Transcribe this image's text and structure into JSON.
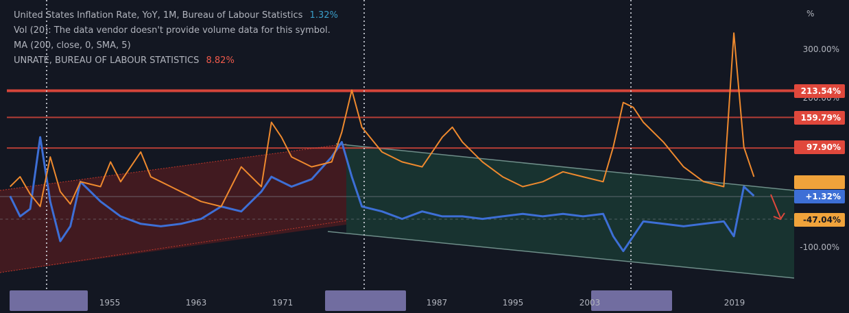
{
  "legend": {
    "row1_label": "United States Inflation Rate, YoY, 1M, Bureau of Labour Statistics",
    "row1_value": "1.32%",
    "row2_label": "Vol (20): The data vendor doesn't provide volume data for this symbol.",
    "row3_label": "MA (200, close, 0, SMA, 5)",
    "row4_label": "UNRATE, BUREAU OF LABOUR STATISTICS",
    "row4_value": "8.82%"
  },
  "colors": {
    "background": "#131722",
    "inflation_line": "#3d6fd6",
    "unrate_line": "#ef8a2e",
    "resistance": "#e0483c",
    "channel_up_fill": "#7a1f1f",
    "channel_down_fill": "#1d4a3c",
    "channel_down_line": "#6f8f8a",
    "axis_text": "#b2b5be"
  },
  "chart_data": {
    "type": "line",
    "title": "United States Inflation Rate, YoY, 1M, Bureau of Labour Statistics",
    "x_ticks": [
      "1955",
      "1963",
      "1971",
      "1987",
      "1995",
      "2003",
      "2019"
    ],
    "y_unit": "%",
    "y_ticks": [
      "300.00%",
      "200.00%",
      "100.00%",
      "-100.00%"
    ],
    "price_labels": [
      {
        "text": "213.54%",
        "color": "#e0483c"
      },
      {
        "text": "159.79%",
        "color": "#e0483c"
      },
      {
        "text": "97.90%",
        "color": "#e0483c"
      },
      {
        "text": "+1.32%",
        "color": "#3d6fd6"
      },
      {
        "text": "-47.04%",
        "color": "#f0a33b"
      }
    ],
    "horizontal_levels": [
      213.54,
      159.79,
      97.9
    ],
    "series": [
      {
        "name": "United States Inflation Rate, YoY, 1M, Bureau of Labour Statistics",
        "x": [
          1948,
          1949,
          1950,
          1951,
          1952,
          1953,
          1954,
          1955,
          1957,
          1959,
          1961,
          1963,
          1965,
          1967,
          1969,
          1971,
          1973,
          1974,
          1975,
          1976,
          1978,
          1980,
          1981,
          1982,
          1983,
          1985,
          1987,
          1989,
          1991,
          1993,
          1995,
          1997,
          1999,
          2001,
          2003,
          2005,
          2007,
          2008,
          2009,
          2011,
          2013,
          2015,
          2017,
          2019,
          2020,
          2021,
          2022
        ],
        "y": [
          1,
          -40,
          -25,
          120,
          -10,
          -90,
          -60,
          30,
          -10,
          -40,
          -55,
          -60,
          -55,
          -45,
          -20,
          -30,
          10,
          40,
          30,
          20,
          35,
          80,
          110,
          40,
          -20,
          -30,
          -45,
          -30,
          -40,
          -40,
          -45,
          -40,
          -35,
          -40,
          -35,
          -40,
          -35,
          -80,
          -110,
          -50,
          -55,
          -60,
          -55,
          -50,
          -80,
          20,
          1.32
        ]
      },
      {
        "name": "UNRATE, BUREAU OF LABOUR STATISTICS",
        "x": [
          1948,
          1949,
          1950,
          1951,
          1952,
          1953,
          1954,
          1955,
          1957,
          1958,
          1959,
          1961,
          1962,
          1963,
          1965,
          1967,
          1969,
          1971,
          1973,
          1974,
          1975,
          1976,
          1978,
          1980,
          1981,
          1982,
          1983,
          1985,
          1987,
          1989,
          1991,
          1992,
          1993,
          1995,
          1997,
          1999,
          2001,
          2003,
          2005,
          2007,
          2008,
          2009,
          2010,
          2011,
          2013,
          2015,
          2017,
          2019,
          2020,
          2021,
          2022
        ],
        "y": [
          20,
          40,
          5,
          -20,
          80,
          10,
          -15,
          30,
          20,
          70,
          30,
          90,
          40,
          30,
          10,
          -10,
          -20,
          60,
          20,
          150,
          120,
          80,
          60,
          70,
          130,
          215,
          140,
          90,
          70,
          60,
          120,
          140,
          110,
          70,
          40,
          20,
          30,
          50,
          40,
          30,
          100,
          190,
          180,
          150,
          110,
          60,
          30,
          20,
          330,
          100,
          40
        ]
      }
    ],
    "grid": false,
    "legend_position": "top-left"
  }
}
